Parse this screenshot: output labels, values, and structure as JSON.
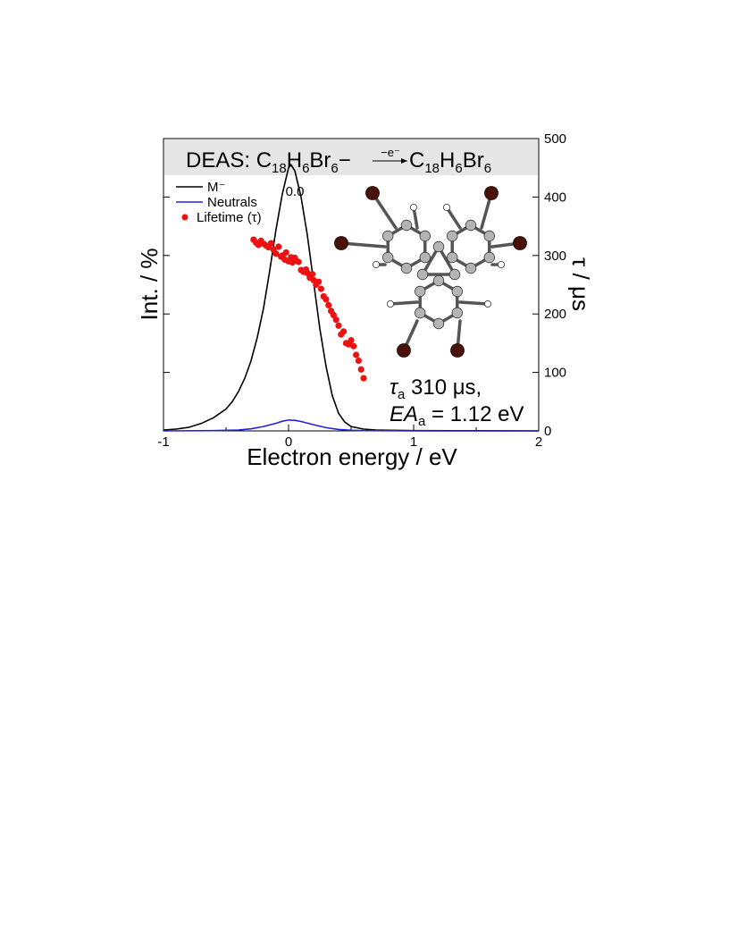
{
  "chart_data": {
    "type": "line",
    "title": {
      "prefix": "DEAS: C",
      "sub1": "18",
      "mid1": "H",
      "sub2": "6",
      "mid2": "Br",
      "sub3": "6",
      "charge": "−",
      "arrow_label": "−e⁻",
      "product_c": "C",
      "product_sub1": "18",
      "product_h": "H",
      "product_sub2": "6",
      "product_br": "Br",
      "product_sub3": "6"
    },
    "xlabel": "Electron energy / eV",
    "ylabel_left": "Int. / %",
    "ylabel_right": "τ / μs",
    "xlim": [
      -1,
      2
    ],
    "ylim_right": [
      0,
      500
    ],
    "x_ticks": [
      "-1",
      "0",
      "1",
      "2"
    ],
    "y_right_ticks": [
      "0",
      "100",
      "200",
      "300",
      "400",
      "500"
    ],
    "legend": {
      "items": [
        "M⁻",
        "Neutrals",
        "Lifetime (τ)"
      ],
      "placement": "top-left"
    },
    "peak_label": "0.0",
    "annotation": {
      "tau_symbol": "τ",
      "tau_sub": "a",
      "tau_value": " 310 μs,",
      "ea_symbol": "EA",
      "ea_sub": "a",
      "ea_value": " = 1.12 eV"
    },
    "series": [
      {
        "name": "M⁻",
        "color": "#000000",
        "x": [
          -1.0,
          -0.9,
          -0.8,
          -0.7,
          -0.6,
          -0.5,
          -0.45,
          -0.4,
          -0.35,
          -0.3,
          -0.25,
          -0.2,
          -0.15,
          -0.1,
          -0.05,
          0.0,
          0.02,
          0.05,
          0.1,
          0.15,
          0.2,
          0.25,
          0.3,
          0.35,
          0.4,
          0.45,
          0.5,
          0.6,
          0.7,
          0.8,
          1.0,
          1.5,
          2.0
        ],
        "y": [
          0.3,
          0.6,
          1.2,
          2.5,
          4.5,
          7.5,
          10,
          13.5,
          18,
          24,
          32,
          42,
          55,
          69,
          81,
          90,
          91,
          89,
          80,
          67,
          51,
          35,
          22,
          12,
          6,
          3,
          1.5,
          0.6,
          0.3,
          0.2,
          0.1,
          0.05,
          0
        ]
      },
      {
        "name": "Neutrals",
        "color": "#2323d8",
        "x": [
          -1.0,
          -0.6,
          -0.4,
          -0.3,
          -0.2,
          -0.1,
          -0.05,
          0.0,
          0.05,
          0.1,
          0.2,
          0.3,
          0.4,
          0.5,
          0.6,
          0.8,
          1.0,
          1.5,
          2.0
        ],
        "y": [
          0,
          0.1,
          0.3,
          0.7,
          1.5,
          2.6,
          3.3,
          3.7,
          3.6,
          3.2,
          2.1,
          1.1,
          0.5,
          0.2,
          0.1,
          0.05,
          0,
          0,
          0
        ]
      },
      {
        "name": "Lifetime (τ)",
        "color": "#ee1111",
        "x": [
          -0.28,
          -0.26,
          -0.24,
          -0.22,
          -0.2,
          -0.18,
          -0.16,
          -0.14,
          -0.12,
          -0.1,
          -0.08,
          -0.06,
          -0.05,
          -0.03,
          -0.02,
          0.0,
          0.02,
          0.03,
          0.05,
          0.06,
          0.08,
          0.1,
          0.12,
          0.14,
          0.15,
          0.17,
          0.19,
          0.2,
          0.22,
          0.24,
          0.26,
          0.28,
          0.3,
          0.32,
          0.34,
          0.36,
          0.38,
          0.4,
          0.42,
          0.44,
          0.46,
          0.48,
          0.5,
          0.52,
          0.54,
          0.56,
          0.58,
          0.6
        ],
        "y": [
          327,
          322,
          318,
          325,
          320,
          317,
          314,
          321,
          310,
          303,
          315,
          298,
          300,
          293,
          305,
          290,
          297,
          288,
          296,
          291,
          289,
          275,
          272,
          276,
          270,
          262,
          268,
          258,
          250,
          255,
          243,
          230,
          225,
          215,
          205,
          198,
          190,
          180,
          165,
          170,
          150,
          148,
          155,
          145,
          130,
          120,
          105,
          90
        ]
      }
    ],
    "molecule_colors": {
      "carbon": "#b4b4b4",
      "hydrogen": "#ffffff",
      "bromine": "#4a1108"
    }
  }
}
